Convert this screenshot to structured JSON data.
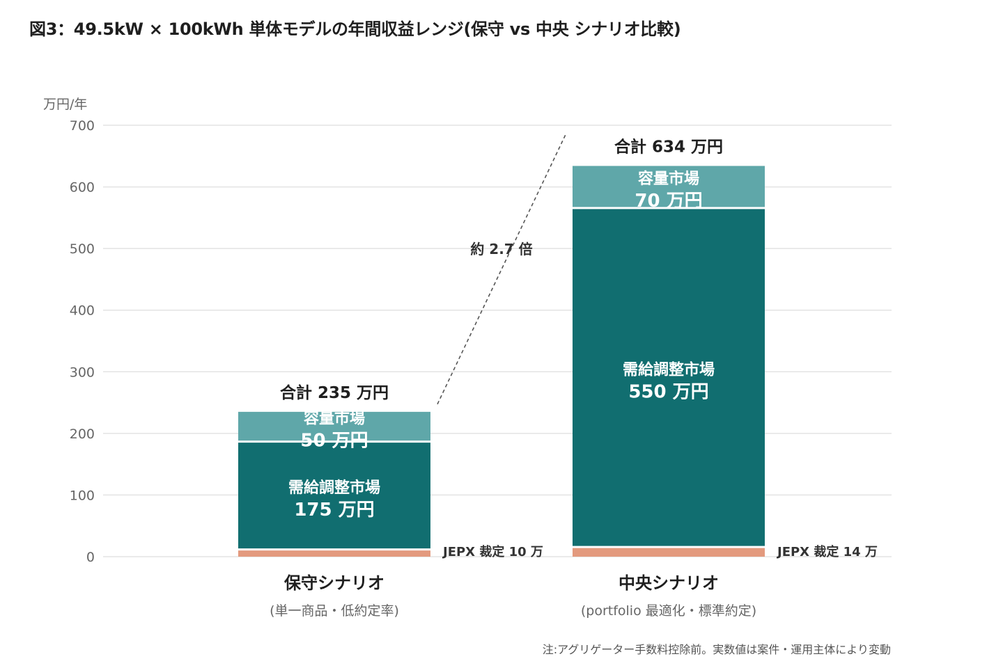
{
  "title": "図3：49.5kW × 100kWh 単体モデルの年間収益レンジ(保守 vs 中央 シナリオ比較)",
  "footnote": "注:アグリゲーター手数料控除前。実数値は案件・運用主体により変動",
  "chart_data": {
    "type": "bar",
    "stacked": true,
    "ylabel": "万円/年",
    "ylim": [
      0,
      700
    ],
    "yticks": [
      0,
      100,
      200,
      300,
      400,
      500,
      600,
      700
    ],
    "grid": true,
    "categories": [
      {
        "name": "保守シナリオ",
        "sub": "(単一商品・低約定率)",
        "total_label": "合計 235 万円"
      },
      {
        "name": "中央シナリオ",
        "sub": "(portfolio 最適化・標準約定)",
        "total_label": "合計 634 万円"
      }
    ],
    "series": [
      {
        "name": "JEPX 裁定",
        "color": "#e39a7e",
        "values": [
          10,
          14
        ],
        "labels": [
          "JEPX 裁定 10 万",
          "JEPX 裁定 14 万"
        ]
      },
      {
        "name": "需給調整市場",
        "color": "#116e70",
        "values": [
          175,
          550
        ],
        "labels": [
          "175 万円",
          "550 万円"
        ]
      },
      {
        "name": "容量市場",
        "color": "#5fa7a9",
        "values": [
          50,
          70
        ],
        "labels": [
          "50 万円",
          "70 万円"
        ]
      }
    ],
    "annotation": "約 2.7 倍"
  }
}
